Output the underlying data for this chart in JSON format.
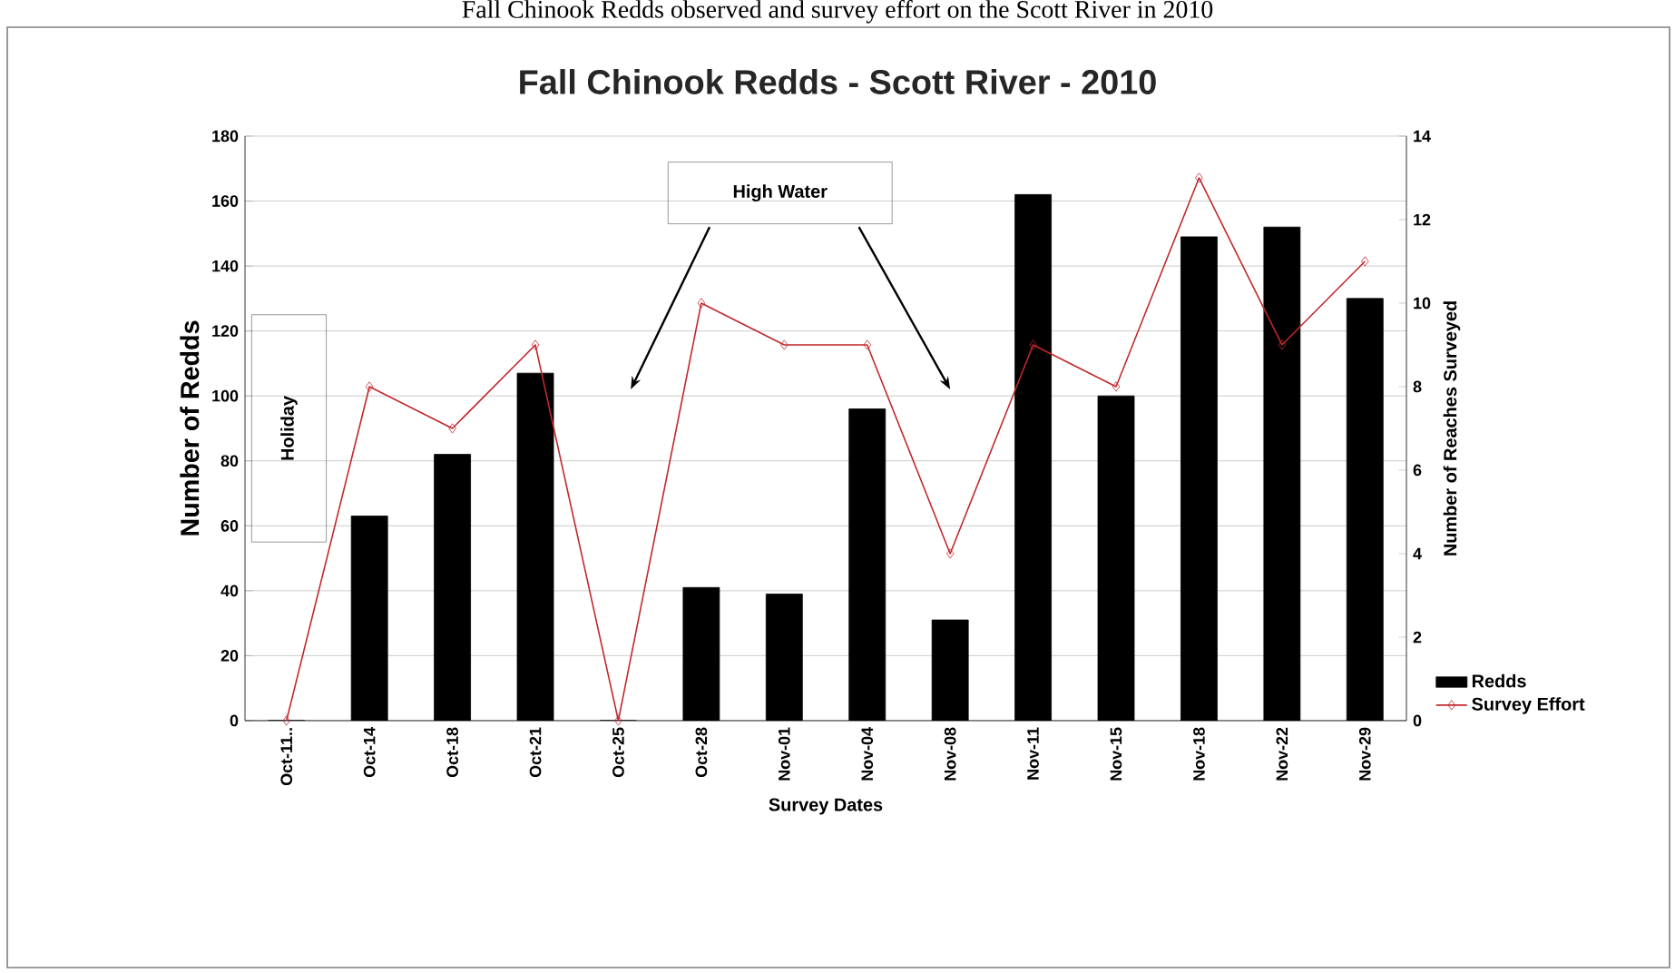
{
  "chart_data": {
    "type": "bar",
    "title": "Fall Chinook Redds - Scott River - 2010",
    "xlabel": "Survey Dates",
    "ylabel": "Number of Redds",
    "y2label": "Number of Reaches Surveyed",
    "categories": [
      "Oct-11..",
      "Oct-14",
      "Oct-18",
      "Oct-21",
      "Oct-25",
      "Oct-28",
      "Nov-01",
      "Nov-04",
      "Nov-08",
      "Nov-11",
      "Nov-15",
      "Nov-18",
      "Nov-22",
      "Nov-29"
    ],
    "series": [
      {
        "name": "Redds",
        "color": "#000000",
        "values": [
          0,
          63,
          82,
          107,
          0,
          41,
          39,
          96,
          31,
          162,
          100,
          149,
          152,
          130
        ]
      },
      {
        "name": "Survey Effort",
        "type": "line",
        "axis": "y2",
        "color": "#c0282d",
        "marker": "diamond",
        "values": [
          0,
          8,
          7,
          9,
          0,
          10,
          9,
          9,
          4,
          9,
          8,
          13,
          9,
          11
        ]
      }
    ],
    "ylim": [
      0,
      180
    ],
    "yticks": [
      0,
      20,
      40,
      60,
      80,
      100,
      120,
      140,
      160,
      180
    ],
    "y2lim": [
      0,
      14
    ],
    "y2ticks": [
      0,
      2,
      4,
      6,
      8,
      10,
      12,
      14
    ],
    "grid": "y",
    "legend": "bottom right",
    "annotations": [
      "Fall Chinook Redds observed and survey effort on the Scott River in 2010",
      "Holiday",
      "High Water"
    ]
  }
}
